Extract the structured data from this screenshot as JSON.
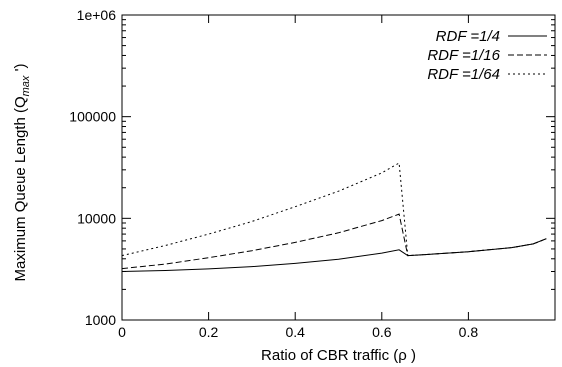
{
  "chart_data": {
    "type": "line",
    "title": "",
    "xlabel": "Ratio of CBR traffic (ρ   )",
    "ylabel": "Maximum Queue Length (Q",
    "ylabel_sub": "max",
    "ylabel_tail": "  ')",
    "yscale": "log",
    "xlim": [
      0,
      1
    ],
    "ylim": [
      1000,
      1000000
    ],
    "x_ticks": [
      0,
      0.2,
      0.4,
      0.6,
      0.8
    ],
    "x_tick_labels": [
      "0",
      "0.2",
      "0.4",
      "0.6",
      "0.8"
    ],
    "y_ticks": [
      1000,
      10000,
      100000,
      1000000
    ],
    "y_tick_labels": [
      "1000",
      "10000",
      "100000",
      "1e+06"
    ],
    "grid": false,
    "legend_position": "top-right",
    "series": [
      {
        "name": "RDF =1/4",
        "style": "solid",
        "x": [
          0,
          0.1,
          0.2,
          0.3,
          0.4,
          0.5,
          0.6,
          0.64,
          0.66,
          0.7,
          0.8,
          0.9,
          0.95,
          0.98
        ],
        "y": [
          3000,
          3070,
          3180,
          3350,
          3600,
          3950,
          4550,
          4900,
          4300,
          4400,
          4700,
          5150,
          5600,
          6300
        ]
      },
      {
        "name": "RDF =1/16",
        "style": "dashed",
        "x": [
          0,
          0.1,
          0.2,
          0.3,
          0.4,
          0.5,
          0.6,
          0.64,
          0.66,
          0.7,
          0.8,
          0.9,
          0.95,
          0.98
        ],
        "y": [
          3200,
          3550,
          4100,
          4800,
          5800,
          7200,
          9500,
          11000,
          4300,
          4400,
          4700,
          5150,
          5600,
          6300
        ]
      },
      {
        "name": "RDF =1/64",
        "style": "dotted",
        "x": [
          0,
          0.1,
          0.2,
          0.3,
          0.4,
          0.5,
          0.6,
          0.64,
          0.66,
          0.7,
          0.8,
          0.9,
          0.95,
          0.98
        ],
        "y": [
          4300,
          5400,
          7000,
          9300,
          13000,
          18500,
          28000,
          35000,
          4300,
          4400,
          4700,
          5150,
          5600,
          6300
        ]
      }
    ]
  }
}
